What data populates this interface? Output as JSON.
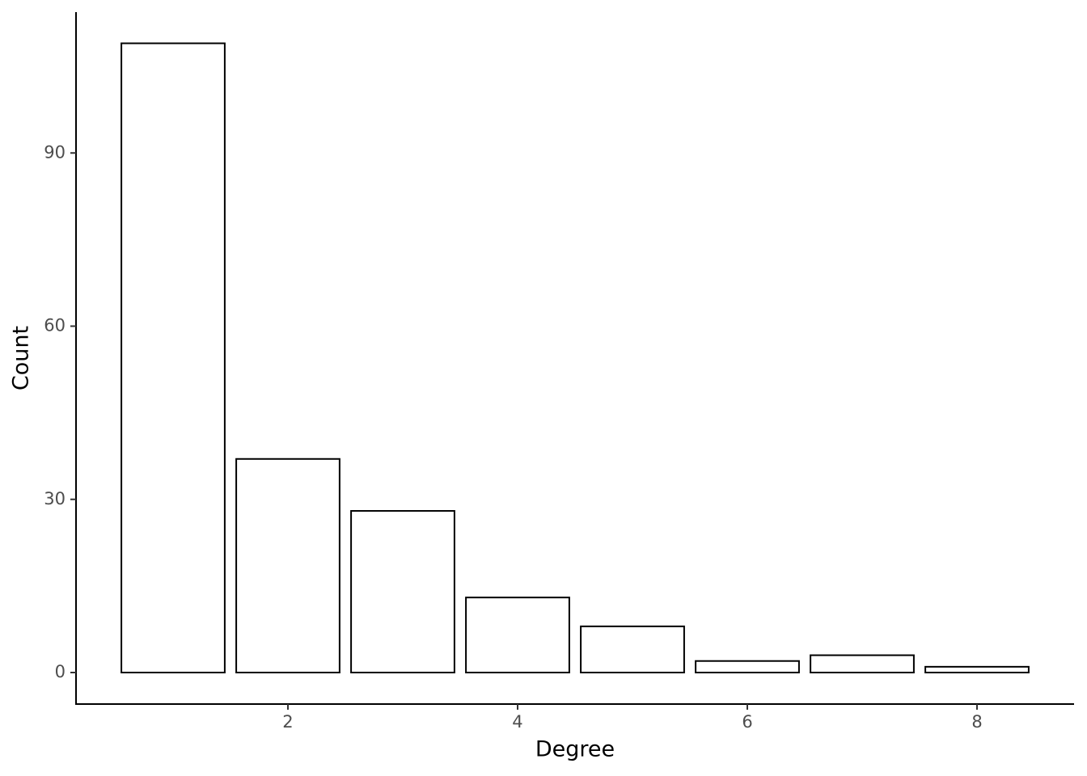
{
  "chart_data": {
    "type": "bar",
    "x_label": "Degree",
    "y_label": "Count",
    "x": [
      1,
      2,
      3,
      4,
      5,
      6,
      7,
      8
    ],
    "values": [
      109,
      37,
      28,
      13,
      8,
      2,
      3,
      1
    ],
    "color": "#ffffff",
    "edge_color": "#000000",
    "xlim": [
      0.155,
      8.845
    ],
    "ylim": [
      -5.46,
      114.4
    ],
    "xticks": [
      2,
      4,
      6,
      8
    ],
    "yticks": [
      0,
      30,
      60,
      90
    ],
    "grid": false
  }
}
